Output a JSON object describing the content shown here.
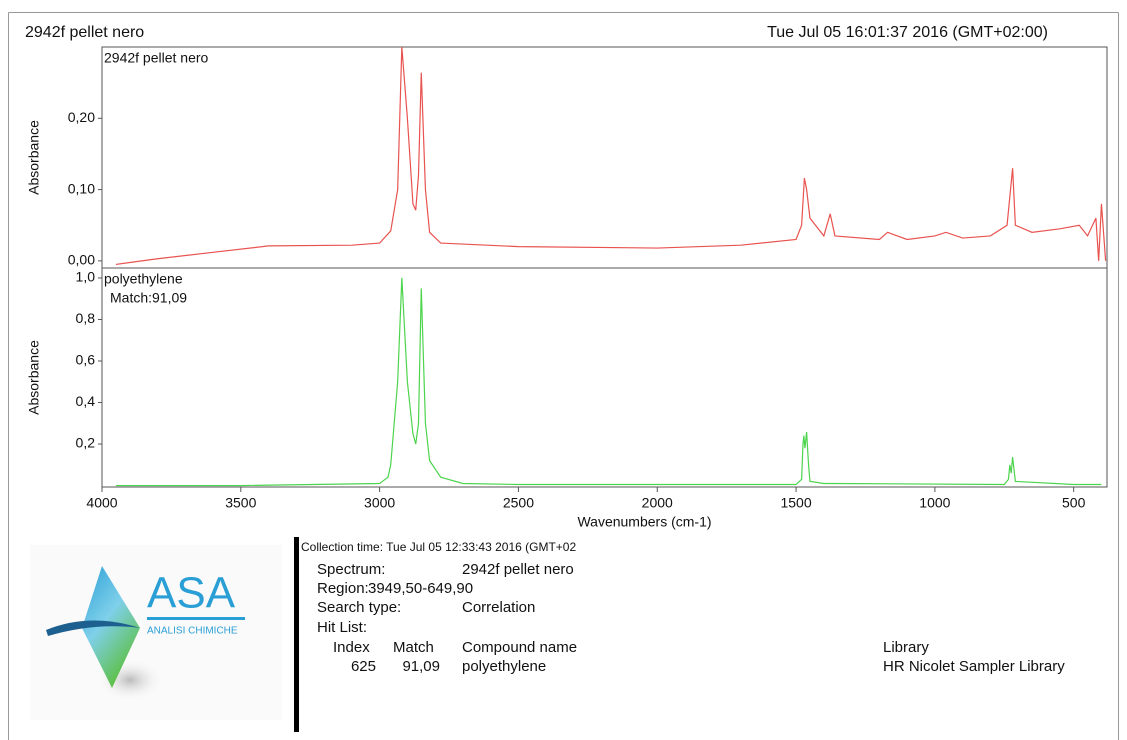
{
  "header": {
    "title": "2942f pellet nero",
    "date": "Tue Jul 05 16:01:37 2016 (GMT+02:00)"
  },
  "chart_data": [
    {
      "type": "line",
      "ylabel": "Absorbance",
      "xlim": [
        4000,
        380
      ],
      "ylim": [
        -0.01,
        0.3
      ],
      "yticks": [
        {
          "value": 0,
          "label": "0,00"
        },
        {
          "value": 0.1,
          "label": "0,10"
        },
        {
          "value": 0.2,
          "label": "0,20"
        }
      ],
      "x": [
        3950,
        3800,
        3600,
        3400,
        3100,
        3000,
        2960,
        2935,
        2920,
        2900,
        2880,
        2870,
        2860,
        2850,
        2835,
        2820,
        2780,
        2500,
        2000,
        1700,
        1500,
        1480,
        1470,
        1462,
        1450,
        1400,
        1377,
        1360,
        1200,
        1170,
        1100,
        1000,
        960,
        900,
        800,
        740,
        730,
        720,
        710,
        650,
        550,
        480,
        450,
        420,
        410,
        400,
        385
      ],
      "series": [
        {
          "name": "2942f pellet nero",
          "color": "#e8534f",
          "values": [
            -0.005,
            0.003,
            0.012,
            0.021,
            0.022,
            0.025,
            0.042,
            0.1,
            0.3,
            0.2,
            0.08,
            0.071,
            0.12,
            0.264,
            0.1,
            0.04,
            0.025,
            0.02,
            0.018,
            0.022,
            0.03,
            0.05,
            0.116,
            0.1,
            0.06,
            0.035,
            0.066,
            0.035,
            0.03,
            0.04,
            0.03,
            0.035,
            0.04,
            0.032,
            0.035,
            0.05,
            0.09,
            0.13,
            0.05,
            0.04,
            0.045,
            0.05,
            0.035,
            0.06,
            0.0,
            0.08,
            0.0
          ]
        }
      ]
    },
    {
      "type": "line",
      "ylabel": "Absorbance",
      "xlabel": "Wavenumbers (cm-1)",
      "xlim": [
        4000,
        380
      ],
      "ylim": [
        -0.007,
        1.048
      ],
      "xticks": [
        4000,
        3500,
        3000,
        2500,
        2000,
        1500,
        1000,
        500
      ],
      "yticks": [
        {
          "value": 0.2,
          "label": "0,2"
        },
        {
          "value": 0.4,
          "label": "0,4"
        },
        {
          "value": 0.6,
          "label": "0,6"
        },
        {
          "value": 0.8,
          "label": "0,8"
        },
        {
          "value": 1.0,
          "label": "1,0"
        }
      ],
      "annotation": "Match:91,09",
      "x": [
        3950,
        3500,
        3000,
        2970,
        2960,
        2935,
        2920,
        2900,
        2880,
        2870,
        2860,
        2850,
        2835,
        2820,
        2780,
        2700,
        2500,
        1500,
        1480,
        1475,
        1472,
        1468,
        1462,
        1455,
        1450,
        1400,
        1370,
        750,
        735,
        730,
        725,
        720,
        710,
        500,
        400
      ],
      "series": [
        {
          "name": "polyethylene",
          "color": "#4cd44c",
          "values": [
            0.0,
            0.0,
            0.01,
            0.04,
            0.1,
            0.5,
            1.0,
            0.5,
            0.25,
            0.2,
            0.3,
            0.95,
            0.3,
            0.12,
            0.04,
            0.01,
            0.005,
            0.005,
            0.03,
            0.2,
            0.24,
            0.18,
            0.258,
            0.1,
            0.02,
            0.01,
            0.01,
            0.005,
            0.03,
            0.1,
            0.06,
            0.137,
            0.02,
            0.005,
            0.005
          ]
        }
      ]
    }
  ],
  "report": {
    "collection": "Collection time: Tue Jul 05 12:33:43 2016 (GMT+02",
    "spectrum_label": "Spectrum:",
    "spectrum_value": "2942f pellet nero",
    "region_label": "Region:",
    "region_value": "3949,50-649,90",
    "search_label": "Search type:",
    "search_value": "Correlation",
    "hitlist_label": "Hit List:",
    "columns": [
      "Index",
      "Match",
      "Compound name",
      "Library"
    ],
    "rows": [
      [
        "625",
        "91,09",
        "polyethylene",
        "HR Nicolet Sampler Library"
      ]
    ]
  },
  "logo": {
    "name": "ASA",
    "subtitle": "ANALISI CHIMICHE"
  }
}
